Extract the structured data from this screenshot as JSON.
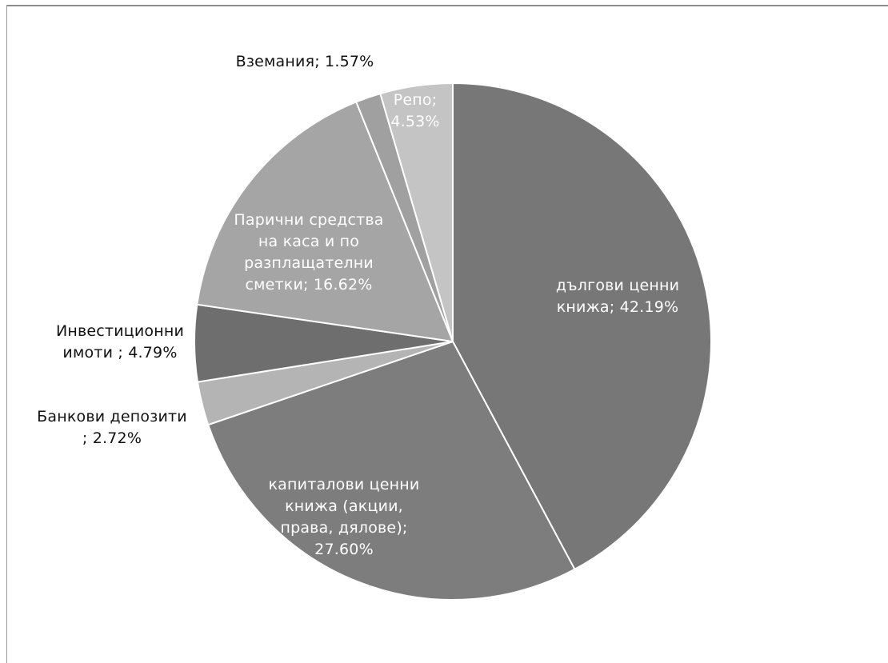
{
  "chart_data": {
    "type": "pie",
    "title": "",
    "slices": [
      {
        "label": "дългови ценни книжа; 42.19%",
        "name": "дългови ценни книжа",
        "value": 42.19,
        "color": "#777777",
        "text_color": "#ffffff"
      },
      {
        "label": "капиталови ценни книжа (акции, права, дялове); 27.60%",
        "name": "капиталови ценни книжа (акции, права, дялове)",
        "value": 27.6,
        "color": "#7d7d7d",
        "text_color": "#ffffff"
      },
      {
        "label": "Банкови депозити ; 2.72%",
        "name": "Банкови депозити",
        "value": 2.72,
        "color": "#b4b4b4",
        "text_color": "#111111"
      },
      {
        "label": "Инвестиционни имоти ; 4.79%",
        "name": "Инвестиционни имоти",
        "value": 4.79,
        "color": "#6e6e6e",
        "text_color": "#111111"
      },
      {
        "label": "Парични средства на каса и по разплащателни сметки; 16.62%",
        "name": "Парични средства на каса и по разплащателни сметки",
        "value": 16.62,
        "color": "#a5a5a5",
        "text_color": "#ffffff"
      },
      {
        "label": "Вземания; 1.57%",
        "name": "Вземания",
        "value": 1.57,
        "color": "#a0a0a0",
        "text_color": "#111111"
      },
      {
        "label": "Репо; 4.53%",
        "name": "Репо",
        "value": 4.53,
        "color": "#c4c4c4",
        "text_color": "#ffffff"
      }
    ],
    "start_angle_deg": 0,
    "direction": "clockwise",
    "legend": "none"
  }
}
